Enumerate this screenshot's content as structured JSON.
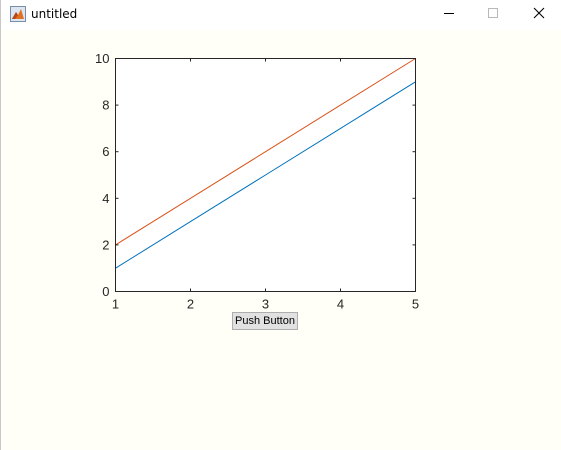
{
  "window": {
    "title": "untitled",
    "app_icon": "matlab-figure-icon",
    "controls": [
      "minimize-icon",
      "maximize-icon",
      "close-icon"
    ]
  },
  "push_button": {
    "label": "Push Button"
  },
  "chart_data": {
    "type": "line",
    "x": [
      1,
      2,
      3,
      4,
      5
    ],
    "xlim": [
      1,
      5
    ],
    "ylim": [
      0,
      10
    ],
    "xticks": [
      "1",
      "2",
      "3",
      "4",
      "5"
    ],
    "yticks": [
      "0",
      "2",
      "4",
      "6",
      "8",
      "10"
    ],
    "title": "",
    "xlabel": "",
    "ylabel": "",
    "grid": false,
    "series": [
      {
        "values": [
          1,
          3,
          5,
          7,
          9
        ],
        "color": "#0072bd"
      },
      {
        "values": [
          2,
          4,
          6,
          8,
          10
        ],
        "color": "#d95319"
      }
    ]
  }
}
